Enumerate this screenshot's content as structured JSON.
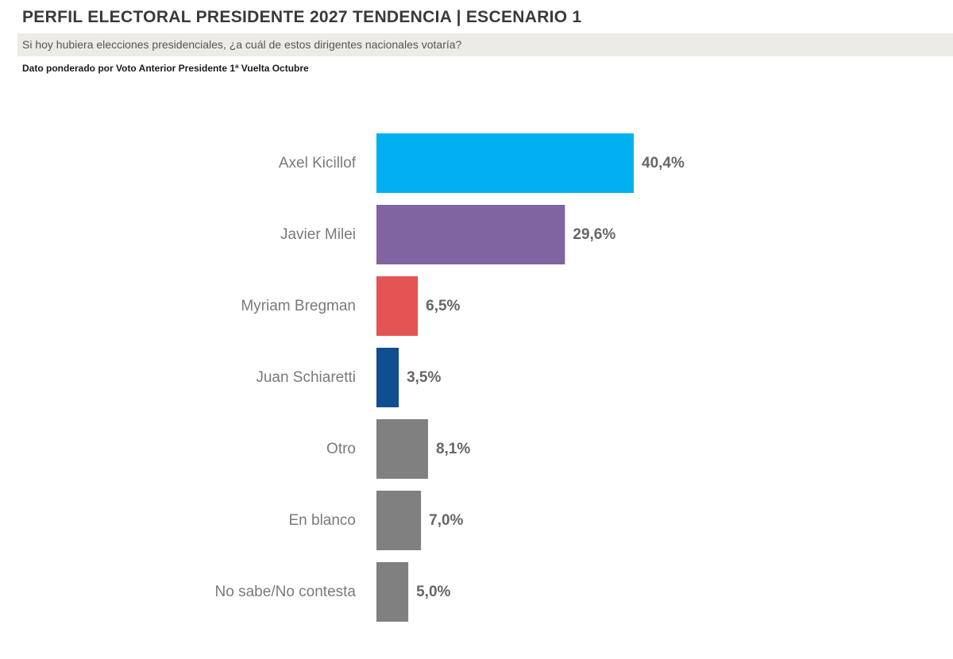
{
  "header": {
    "title": "PERFIL ELECTORAL PRESIDENTE 2027 TENDENCIA | ESCENARIO 1",
    "question": "Si hoy hubiera elecciones presidenciales, ¿a cuál de estos dirigentes nacionales votaría?",
    "note": "Dato ponderado por Voto Anterior Presidente 1ª Vuelta Octubre"
  },
  "colors": {
    "question_band": "#ecebe6",
    "label_text": "#7a7a7a",
    "value_text": "#666666"
  },
  "chart_data": {
    "type": "bar",
    "orientation": "horizontal",
    "title": "",
    "xlabel": "",
    "ylabel": "",
    "grid": false,
    "categories": [
      "Axel Kicillof",
      "Javier Milei",
      "Myriam Bregman",
      "Juan Schiaretti",
      "Otro",
      "En blanco",
      "No sabe/No contesta"
    ],
    "values": [
      40.4,
      29.6,
      6.5,
      3.5,
      8.1,
      7.0,
      5.0
    ],
    "value_labels": [
      "40,4%",
      "29,6%",
      "6,5%",
      "3,5%",
      "8,1%",
      "7,0%",
      "5,0%"
    ],
    "bar_colors": [
      "#00b0f0",
      "#8064a2",
      "#e45454",
      "#0f4f8f",
      "#808080",
      "#808080",
      "#808080"
    ],
    "xlim": [
      0,
      40.4
    ]
  }
}
